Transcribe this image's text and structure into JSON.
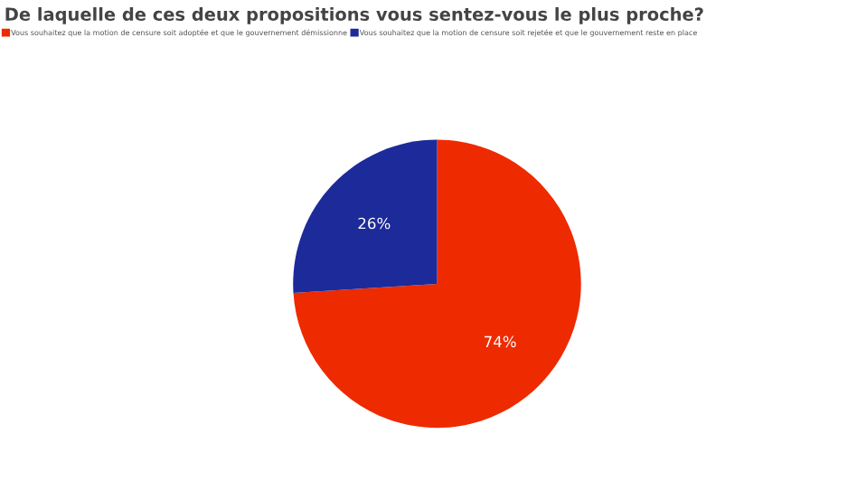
{
  "chart_data": {
    "type": "pie",
    "title": "De laquelle de ces deux propositions vous sentez-vous le plus proche?",
    "categories": [
      "Vous souhaitez que la motion de censure soit adoptée et que le gouvernement démissionne",
      "Vous souhaitez que la motion de censure soit rejetée et que le gouvernement reste en place"
    ],
    "values": [
      74,
      26
    ],
    "colors": [
      "#ee2a00",
      "#1c2a9a"
    ],
    "value_labels": [
      "74%",
      "26%"
    ],
    "legend": "top left"
  }
}
